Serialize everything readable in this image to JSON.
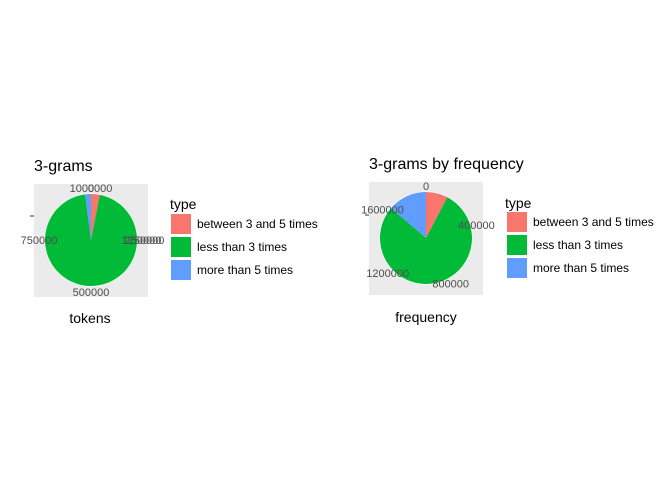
{
  "chart_data": [
    {
      "type": "pie",
      "title": "3-grams",
      "xlabel": "tokens",
      "categories": [
        "between 3 and 5 times",
        "less than 3 times",
        "more than 5 times"
      ],
      "values": [
        30000,
        920000,
        20000
      ],
      "colors": [
        "#F8766D",
        "#00BA38",
        "#619CFF"
      ],
      "axis_max": 1000000,
      "ticks": [
        "0",
        "250000",
        "500000",
        "750000",
        "1000000",
        "1250000"
      ],
      "legend": {
        "title": "type",
        "placement": "right",
        "entries": [
          "between 3 and 5 times",
          "less than 3 times",
          "more than 5 times"
        ]
      }
    },
    {
      "type": "pie",
      "title": "3-grams by frequency",
      "xlabel": "frequency",
      "categories": [
        "between 3 and 5 times",
        "less than 3 times",
        "more than 5 times"
      ],
      "values": [
        140000,
        1430000,
        250000
      ],
      "colors": [
        "#F8766D",
        "#00BA38",
        "#619CFF"
      ],
      "axis_max": 1900000,
      "ticks": [
        "0",
        "400000",
        "800000",
        "1200000",
        "1600000"
      ],
      "legend": {
        "title": "type",
        "placement": "right",
        "entries": [
          "between 3 and 5 times",
          "less than 3 times",
          "more than 5 times"
        ]
      }
    }
  ]
}
